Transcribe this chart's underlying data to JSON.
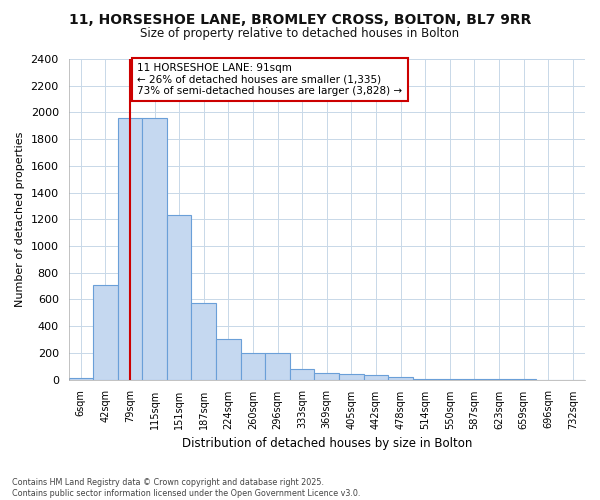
{
  "title_line1": "11, HORSESHOE LANE, BROMLEY CROSS, BOLTON, BL7 9RR",
  "title_line2": "Size of property relative to detached houses in Bolton",
  "xlabel": "Distribution of detached houses by size in Bolton",
  "ylabel": "Number of detached properties",
  "categories": [
    "6sqm",
    "42sqm",
    "79sqm",
    "115sqm",
    "151sqm",
    "187sqm",
    "224sqm",
    "260sqm",
    "296sqm",
    "333sqm",
    "369sqm",
    "405sqm",
    "442sqm",
    "478sqm",
    "514sqm",
    "550sqm",
    "587sqm",
    "623sqm",
    "659sqm",
    "696sqm",
    "732sqm"
  ],
  "values": [
    15,
    710,
    1960,
    1960,
    1235,
    575,
    305,
    200,
    200,
    80,
    48,
    40,
    35,
    18,
    5,
    2,
    2,
    1,
    1,
    0,
    0
  ],
  "bar_color": "#c5d8f0",
  "bar_edge_color": "#6a9fd8",
  "fig_bg_color": "#ffffff",
  "ax_bg_color": "#ffffff",
  "grid_color": "#c8d8e8",
  "vline_color": "#cc0000",
  "vline_x": 2.0,
  "annotation_text": "11 HORSESHOE LANE: 91sqm\n← 26% of detached houses are smaller (1,335)\n73% of semi-detached houses are larger (3,828) →",
  "annotation_box_color": "#ffffff",
  "annotation_box_edge": "#cc0000",
  "ylim": [
    0,
    2400
  ],
  "yticks": [
    0,
    200,
    400,
    600,
    800,
    1000,
    1200,
    1400,
    1600,
    1800,
    2000,
    2200,
    2400
  ],
  "footnote": "Contains HM Land Registry data © Crown copyright and database right 2025.\nContains public sector information licensed under the Open Government Licence v3.0.",
  "fig_width": 6.0,
  "fig_height": 5.0,
  "dpi": 100
}
